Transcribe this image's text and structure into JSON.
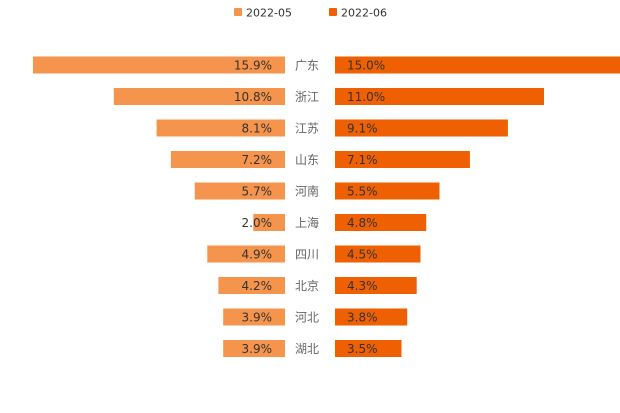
{
  "chart_data": {
    "type": "bar",
    "orientation": "horizontal-butterfly",
    "title": "",
    "xlabel": "",
    "ylabel": "",
    "legend_position": "top-center",
    "grid": false,
    "xlim": [
      0,
      16
    ],
    "categories": [
      "广东",
      "浙江",
      "江苏",
      "山东",
      "河南",
      "上海",
      "四川",
      "北京",
      "河北",
      "湖北"
    ],
    "series": [
      {
        "name": "2022-05",
        "side": "left",
        "color": "#F5944D",
        "values": [
          15.9,
          10.8,
          8.1,
          7.2,
          5.7,
          2.0,
          4.9,
          4.2,
          3.9,
          3.9
        ],
        "labels": [
          "15.9%",
          "10.8%",
          "8.1%",
          "7.2%",
          "5.7%",
          "2.0%",
          "4.9%",
          "4.2%",
          "3.9%",
          "3.9%"
        ]
      },
      {
        "name": "2022-06",
        "side": "right",
        "color": "#EE6002",
        "values": [
          15.0,
          11.0,
          9.1,
          7.1,
          5.5,
          4.8,
          4.5,
          4.3,
          3.8,
          3.5
        ],
        "labels": [
          "15.0%",
          "11.0%",
          "9.1%",
          "7.1%",
          "5.5%",
          "4.8%",
          "4.5%",
          "4.3%",
          "3.8%",
          "3.5%"
        ]
      }
    ]
  }
}
